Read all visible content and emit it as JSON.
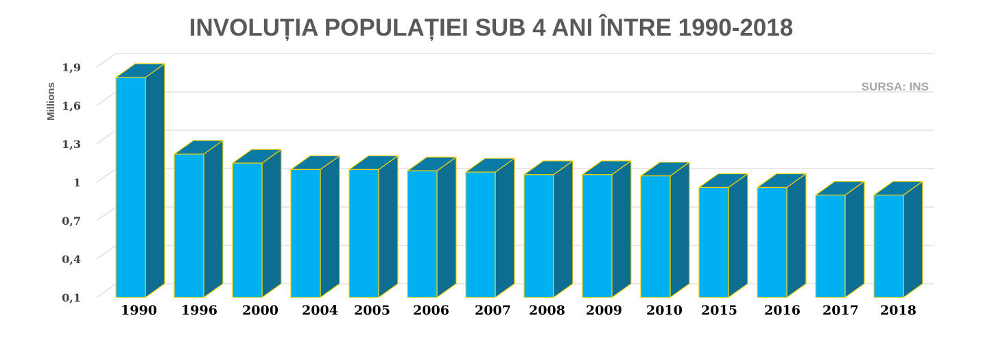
{
  "chart_data": {
    "type": "bar",
    "title": "INVOLUȚIA POPULAȚIEI SUB 4 ANI ÎNTRE 1990-2018",
    "source": "SURSA: INS",
    "ylabel": "Millions",
    "xlabel": "",
    "ylim": [
      0.1,
      1.9
    ],
    "yticks": [
      "0,1",
      "0,4",
      "0,7",
      "1",
      "1,3",
      "1,6",
      "1,9"
    ],
    "grid": true,
    "legend": "none",
    "categories": [
      "1990",
      "1996",
      "2000",
      "2004",
      "2005",
      "2006",
      "2007",
      "2008",
      "2009",
      "2010",
      "2015",
      "2016",
      "2017",
      "2018"
    ],
    "values": [
      1.82,
      1.22,
      1.15,
      1.1,
      1.1,
      1.09,
      1.08,
      1.06,
      1.06,
      1.05,
      0.96,
      0.96,
      0.9,
      0.9
    ],
    "colors": {
      "bar_front": "#00b0f0",
      "bar_side": "#0e6e92",
      "bar_top": "#0b7aa5",
      "bar_edge": "#ffd200",
      "grid": "#d9d9d9"
    }
  }
}
